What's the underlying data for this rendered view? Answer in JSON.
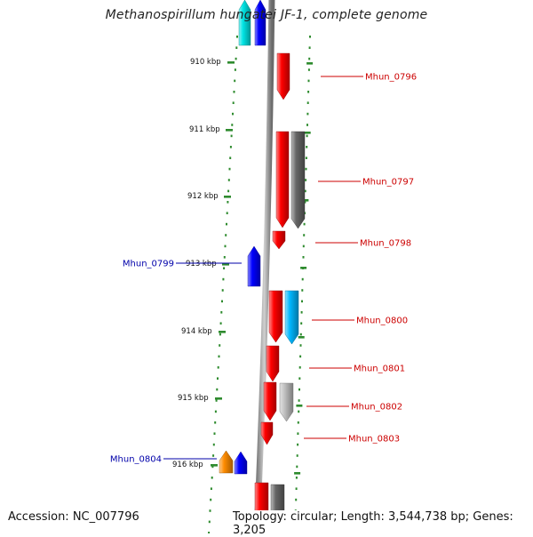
{
  "title": "Methanospirillum hungatei JF-1, complete genome",
  "footer": {
    "accession": "Accession: NC_007796",
    "topology": "Topology: circular; Length: 3,544,738 bp; Genes: 3,205"
  },
  "scale_labels": [
    "910 kbp",
    "911 kbp",
    "912 kbp",
    "913 kbp",
    "914 kbp",
    "915 kbp",
    "916 kbp"
  ],
  "colors": {
    "backbone": "#888888",
    "tick": "#2e8b2e",
    "forward_label": "#cc0000",
    "reverse_label": "#0000aa",
    "red": "#ff0000",
    "dark_gray": "#666666",
    "light_gray": "#c0c0c0",
    "sky_blue": "#00b7ff",
    "cyan": "#00e5e5",
    "blue": "#0000ff",
    "orange": "#ff8c00"
  },
  "genes": [
    {
      "id": "Mhun_0796",
      "strand": "+",
      "color": "red",
      "labelled": true
    },
    {
      "id": "Mhun_0797",
      "strand": "+",
      "color": "red",
      "labelled": true
    },
    {
      "id": "Mhun_0797-partner",
      "strand": "+",
      "color": "dark_gray",
      "labelled": false
    },
    {
      "id": "Mhun_0798",
      "strand": "+",
      "color": "red",
      "labelled": true
    },
    {
      "id": "Mhun_0799",
      "strand": "-",
      "color": "blue",
      "labelled": true
    },
    {
      "id": "Mhun_0800",
      "strand": "+",
      "color": "red",
      "labelled": true
    },
    {
      "id": "Mhun_0800-partner",
      "strand": "+",
      "color": "sky_blue",
      "labelled": false
    },
    {
      "id": "Mhun_0801",
      "strand": "+",
      "color": "red",
      "labelled": true
    },
    {
      "id": "Mhun_0802",
      "strand": "+",
      "color": "red",
      "labelled": true
    },
    {
      "id": "Mhun_0802-partner",
      "strand": "+",
      "color": "light_gray",
      "labelled": false
    },
    {
      "id": "Mhun_0803",
      "strand": "+",
      "color": "red",
      "labelled": true
    },
    {
      "id": "Mhun_0804",
      "strand": "-",
      "color": "blue",
      "labelled": true
    },
    {
      "id": "Mhun_0804-partner",
      "strand": "-",
      "color": "orange",
      "labelled": false
    },
    {
      "id": "top-reverse",
      "strand": "-",
      "color": "blue",
      "labelled": false
    },
    {
      "id": "top-reverse-partner",
      "strand": "-",
      "color": "cyan",
      "labelled": false
    },
    {
      "id": "bottom-forward",
      "strand": "+",
      "color": "red",
      "labelled": false
    },
    {
      "id": "bottom-forward-partner",
      "strand": "+",
      "color": "dark_gray",
      "labelled": false
    }
  ]
}
